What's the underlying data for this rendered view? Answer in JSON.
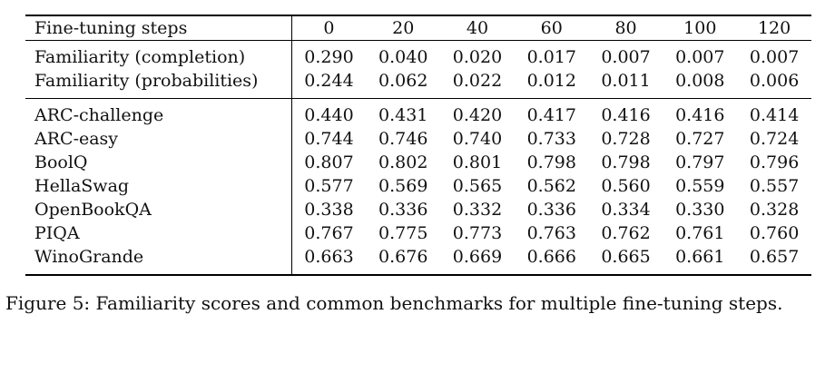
{
  "table": {
    "header_label": "Fine-tuning steps",
    "columns": [
      "0",
      "20",
      "40",
      "60",
      "80",
      "100",
      "120"
    ],
    "sections": [
      {
        "name": "familiarity",
        "rows": [
          {
            "label": "Familiarity (completion)",
            "values": [
              "0.290",
              "0.040",
              "0.020",
              "0.017",
              "0.007",
              "0.007",
              "0.007"
            ]
          },
          {
            "label": "Familiarity (probabilities)",
            "values": [
              "0.244",
              "0.062",
              "0.022",
              "0.012",
              "0.011",
              "0.008",
              "0.006"
            ]
          }
        ]
      },
      {
        "name": "benchmarks",
        "rows": [
          {
            "label": "ARC-challenge",
            "values": [
              "0.440",
              "0.431",
              "0.420",
              "0.417",
              "0.416",
              "0.416",
              "0.414"
            ]
          },
          {
            "label": "ARC-easy",
            "values": [
              "0.744",
              "0.746",
              "0.740",
              "0.733",
              "0.728",
              "0.727",
              "0.724"
            ]
          },
          {
            "label": "BoolQ",
            "values": [
              "0.807",
              "0.802",
              "0.801",
              "0.798",
              "0.798",
              "0.797",
              "0.796"
            ]
          },
          {
            "label": "HellaSwag",
            "values": [
              "0.577",
              "0.569",
              "0.565",
              "0.562",
              "0.560",
              "0.559",
              "0.557"
            ]
          },
          {
            "label": "OpenBookQA",
            "values": [
              "0.338",
              "0.336",
              "0.332",
              "0.336",
              "0.334",
              "0.330",
              "0.328"
            ]
          },
          {
            "label": "PIQA",
            "values": [
              "0.767",
              "0.775",
              "0.773",
              "0.763",
              "0.762",
              "0.761",
              "0.760"
            ]
          },
          {
            "label": "WinoGrande",
            "values": [
              "0.663",
              "0.676",
              "0.669",
              "0.666",
              "0.665",
              "0.661",
              "0.657"
            ]
          }
        ]
      }
    ]
  },
  "caption": "Figure 5: Familiarity scores and common benchmarks for multiple fine-tuning steps."
}
